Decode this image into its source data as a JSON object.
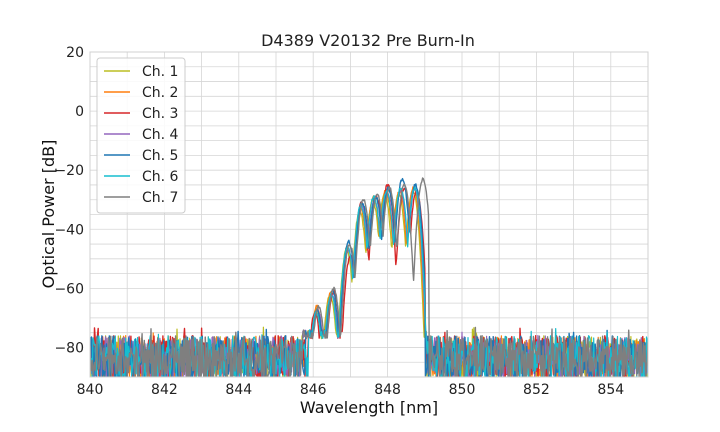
{
  "chart_data": {
    "type": "line",
    "title": "D4389 V20132 Pre Burn-In",
    "xlabel": "Wavelength [nm]",
    "ylabel": "Optical Power [dB]",
    "xlim": [
      840,
      855
    ],
    "ylim": [
      -90,
      20
    ],
    "xticks": [
      840,
      842,
      844,
      846,
      848,
      850,
      852,
      854
    ],
    "yticks": [
      20,
      0,
      -20,
      -40,
      -60,
      -80
    ],
    "xtick_labels": [
      "840",
      "842",
      "844",
      "846",
      "848",
      "850",
      "852",
      "854"
    ],
    "ytick_labels": [
      "20",
      "0",
      "−20",
      "−40",
      "−60",
      "−80"
    ],
    "grid": true,
    "legend_position": "top-left",
    "series": [
      {
        "name": "Ch. 1",
        "color": "#bcbd22",
        "peaks": [
          [
            846.08,
            -67
          ],
          [
            846.45,
            -62
          ],
          [
            846.9,
            -47
          ],
          [
            847.25,
            -34
          ],
          [
            847.6,
            -30
          ],
          [
            847.92,
            -28
          ],
          [
            848.3,
            -28
          ],
          [
            848.68,
            -27
          ]
        ]
      },
      {
        "name": "Ch. 2",
        "color": "#ff7f0e",
        "peaks": [
          [
            846.1,
            -66
          ],
          [
            846.48,
            -61
          ],
          [
            846.92,
            -46
          ],
          [
            847.27,
            -33
          ],
          [
            847.62,
            -29
          ],
          [
            847.95,
            -27
          ],
          [
            848.32,
            -27
          ],
          [
            848.7,
            -26
          ]
        ]
      },
      {
        "name": "Ch. 3",
        "color": "#d62728",
        "peaks": [
          [
            846.05,
            -68
          ],
          [
            846.55,
            -61
          ],
          [
            847.0,
            -49
          ],
          [
            847.3,
            -31
          ],
          [
            847.7,
            -29
          ],
          [
            848.0,
            -25
          ],
          [
            848.45,
            -26
          ],
          [
            848.78,
            -27
          ]
        ]
      },
      {
        "name": "Ch. 4",
        "color": "#9467bd",
        "peaks": [
          [
            846.12,
            -67
          ],
          [
            846.5,
            -62
          ],
          [
            846.95,
            -47
          ],
          [
            847.3,
            -32
          ],
          [
            847.65,
            -30
          ],
          [
            847.98,
            -27
          ],
          [
            848.35,
            -27
          ],
          [
            848.72,
            -26
          ]
        ]
      },
      {
        "name": "Ch. 5",
        "color": "#1f77b4",
        "peaks": [
          [
            846.1,
            -67
          ],
          [
            846.52,
            -61
          ],
          [
            846.95,
            -44
          ],
          [
            847.32,
            -31
          ],
          [
            847.68,
            -29
          ],
          [
            848.02,
            -26
          ],
          [
            848.4,
            -23
          ],
          [
            848.75,
            -25
          ]
        ]
      },
      {
        "name": "Ch. 6",
        "color": "#17becf",
        "peaks": [
          [
            846.08,
            -68
          ],
          [
            846.48,
            -62
          ],
          [
            846.92,
            -46
          ],
          [
            847.28,
            -32
          ],
          [
            847.63,
            -29
          ],
          [
            847.97,
            -27
          ],
          [
            848.35,
            -26
          ],
          [
            848.73,
            -26
          ]
        ]
      },
      {
        "name": "Ch. 7",
        "color": "#7f7f7f",
        "peaks": [
          [
            846.15,
            -66
          ],
          [
            846.55,
            -60
          ],
          [
            846.98,
            -45
          ],
          [
            847.35,
            -30
          ],
          [
            847.72,
            -28
          ],
          [
            848.05,
            -26
          ],
          [
            848.45,
            -25
          ],
          [
            848.95,
            -23
          ]
        ]
      }
    ]
  }
}
